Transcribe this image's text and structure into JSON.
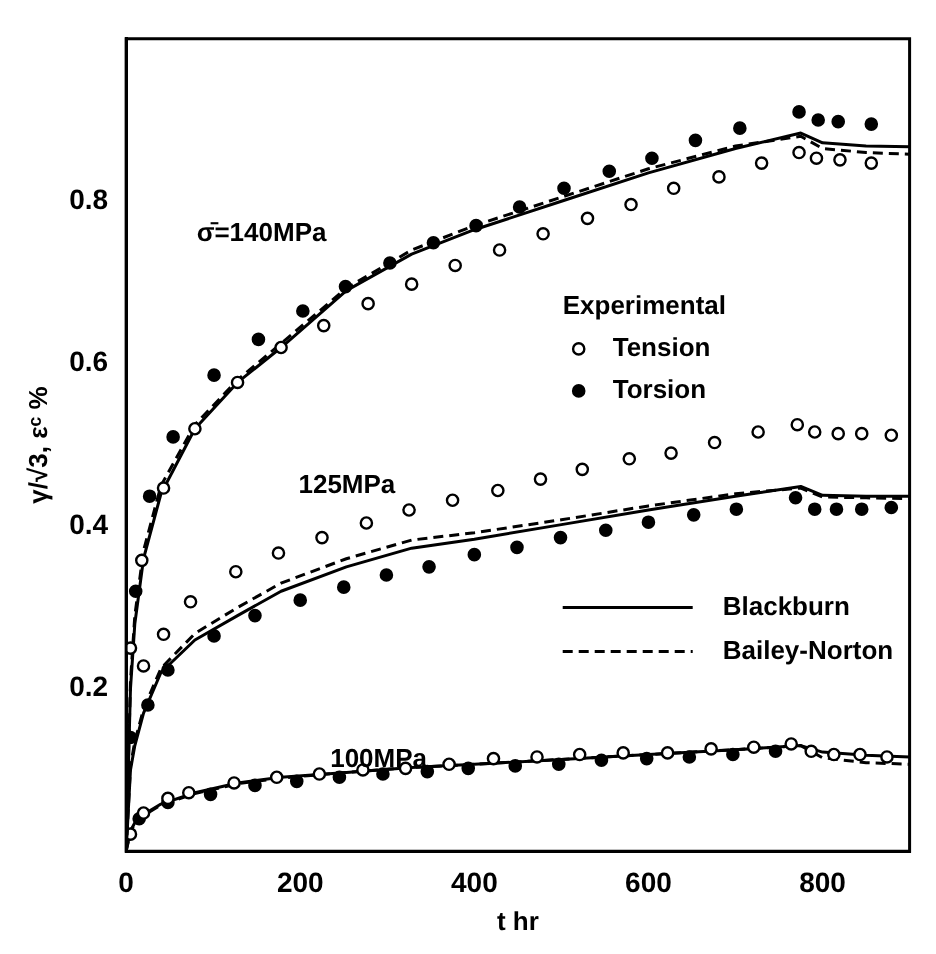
{
  "chart_data": {
    "type": "line",
    "xlabel": "t hr",
    "ylabel": "γ/√3, εᶜ %",
    "xlim": [
      0,
      900
    ],
    "xticks": [
      0,
      200,
      400,
      600,
      800
    ],
    "ylim": [
      0,
      1.0
    ],
    "yticks": [
      0.2,
      0.4,
      0.6,
      0.8
    ],
    "grid": false,
    "legend": "right",
    "legend_title": "Experimental",
    "annotations": [
      "σ̄=140MPa",
      "125MPa",
      {
        "text": "100MPa",
        "x": 290,
        "y": 0.112
      }
    ],
    "series": [
      {
        "name": "Tension",
        "type": "scatter",
        "marker": "circle",
        "color": "#000000",
        "x": [
          5,
          18,
          43,
          79,
          128,
          178,
          227,
          278,
          328,
          378,
          429,
          479,
          530,
          580,
          629,
          681,
          730,
          773,
          793,
          820,
          856
        ],
        "values": [
          0.25,
          0.358,
          0.447,
          0.52,
          0.577,
          0.62,
          0.647,
          0.674,
          0.698,
          0.721,
          0.74,
          0.76,
          0.779,
          0.796,
          0.816,
          0.83,
          0.847,
          0.86,
          0.853,
          0.851,
          0.847
        ]
      },
      {
        "name": "Torsion",
        "type": "scatter",
        "marker": "circle",
        "color": "#000000",
        "x": [
          11,
          27,
          54,
          101,
          152,
          203,
          252,
          303,
          353,
          402,
          452,
          503,
          555,
          604,
          654,
          705,
          773,
          795,
          818,
          856
        ],
        "values": [
          0.32,
          0.437,
          0.51,
          0.586,
          0.63,
          0.665,
          0.695,
          0.724,
          0.749,
          0.77,
          0.793,
          0.816,
          0.837,
          0.853,
          0.875,
          0.89,
          0.91,
          0.9,
          0.898,
          0.895
        ]
      },
      {
        "name": "Blackburn",
        "line_style": "solid",
        "color": "#000000",
        "x": [
          0,
          5,
          10,
          20,
          40,
          79,
          128,
          178,
          253,
          328,
          400,
          500,
          600,
          700,
          775,
          800,
          850,
          900
        ],
        "values": [
          0,
          0.2,
          0.28,
          0.36,
          0.44,
          0.52,
          0.577,
          0.62,
          0.69,
          0.735,
          0.765,
          0.8,
          0.835,
          0.865,
          0.884,
          0.872,
          0.868,
          0.867
        ]
      },
      {
        "name": "Bailey-Norton",
        "line_style": "dashed",
        "color": "#000000",
        "x": [
          0,
          5,
          10,
          20,
          40,
          79,
          128,
          178,
          253,
          328,
          400,
          500,
          600,
          700,
          775,
          800,
          850,
          900
        ],
        "values": [
          0,
          0.21,
          0.29,
          0.37,
          0.45,
          0.525,
          0.58,
          0.625,
          0.693,
          0.74,
          0.77,
          0.805,
          0.84,
          0.868,
          0.88,
          0.865,
          0.86,
          0.858
        ]
      },
      {
        "type": "scatter",
        "marker": "circle",
        "color": "#000000",
        "x": [
          20,
          43,
          74,
          126,
          175,
          225,
          276,
          325,
          375,
          427,
          476,
          524,
          578,
          626,
          676,
          726,
          771,
          791,
          818,
          845,
          879
        ],
        "values": [
          0.228,
          0.267,
          0.307,
          0.344,
          0.367,
          0.386,
          0.404,
          0.42,
          0.432,
          0.444,
          0.458,
          0.47,
          0.483,
          0.49,
          0.503,
          0.516,
          0.525,
          0.516,
          0.514,
          0.514,
          0.512
        ]
      },
      {
        "type": "scatter",
        "marker": "circle",
        "color": "#000000",
        "x": [
          5,
          25,
          48,
          101,
          148,
          200,
          250,
          299,
          348,
          400,
          449,
          499,
          551,
          600,
          652,
          701,
          769,
          791,
          816,
          845,
          879
        ],
        "values": [
          0.14,
          0.18,
          0.223,
          0.265,
          0.29,
          0.309,
          0.325,
          0.34,
          0.35,
          0.365,
          0.374,
          0.386,
          0.395,
          0.405,
          0.414,
          0.421,
          0.435,
          0.421,
          0.421,
          0.421,
          0.423
        ]
      },
      {
        "line_style": "solid",
        "color": "#000000",
        "x": [
          0,
          5,
          10,
          20,
          40,
          79,
          128,
          178,
          253,
          328,
          400,
          500,
          600,
          700,
          775,
          800,
          850,
          900
        ],
        "values": [
          0,
          0.1,
          0.13,
          0.17,
          0.22,
          0.26,
          0.29,
          0.32,
          0.35,
          0.373,
          0.384,
          0.402,
          0.42,
          0.437,
          0.449,
          0.438,
          0.437,
          0.437
        ]
      },
      {
        "line_style": "dashed",
        "color": "#000000",
        "x": [
          0,
          5,
          10,
          20,
          40,
          79,
          128,
          178,
          253,
          328,
          400,
          500,
          600,
          700,
          775,
          800,
          850,
          900
        ],
        "values": [
          0,
          0.105,
          0.135,
          0.175,
          0.225,
          0.268,
          0.3,
          0.33,
          0.36,
          0.383,
          0.392,
          0.408,
          0.425,
          0.44,
          0.447,
          0.436,
          0.435,
          0.434
        ]
      },
      {
        "type": "scatter",
        "marker": "circle",
        "color": "#000000",
        "x": [
          5,
          20,
          48,
          72,
          124,
          173,
          222,
          272,
          321,
          371,
          422,
          472,
          521,
          571,
          622,
          672,
          721,
          764,
          787,
          813,
          843,
          874
        ],
        "values": [
          0.021,
          0.047,
          0.065,
          0.072,
          0.084,
          0.091,
          0.095,
          0.1,
          0.102,
          0.107,
          0.114,
          0.116,
          0.119,
          0.121,
          0.121,
          0.126,
          0.128,
          0.132,
          0.123,
          0.119,
          0.119,
          0.116
        ]
      },
      {
        "type": "scatter",
        "marker": "circle",
        "color": "#000000",
        "x": [
          15,
          48,
          97,
          148,
          196,
          245,
          295,
          346,
          393,
          447,
          497,
          546,
          598,
          647,
          697,
          746
        ],
        "values": [
          0.04,
          0.06,
          0.07,
          0.081,
          0.086,
          0.091,
          0.095,
          0.098,
          0.102,
          0.105,
          0.107,
          0.112,
          0.114,
          0.116,
          0.119,
          0.123
        ]
      },
      {
        "line_style": "solid",
        "color": "#000000",
        "x": [
          0,
          5,
          10,
          20,
          40,
          79,
          128,
          178,
          253,
          328,
          400,
          500,
          600,
          700,
          775,
          800,
          850,
          900
        ],
        "values": [
          0,
          0.025,
          0.035,
          0.045,
          0.058,
          0.072,
          0.084,
          0.091,
          0.097,
          0.103,
          0.107,
          0.113,
          0.119,
          0.125,
          0.13,
          0.122,
          0.118,
          0.116
        ]
      },
      {
        "line_style": "dashed",
        "color": "#000000",
        "x": [
          0,
          5,
          10,
          20,
          40,
          79,
          128,
          178,
          253,
          328,
          400,
          500,
          600,
          700,
          775,
          800,
          850,
          900
        ],
        "values": [
          0,
          0.024,
          0.034,
          0.044,
          0.057,
          0.071,
          0.083,
          0.09,
          0.097,
          0.103,
          0.107,
          0.113,
          0.119,
          0.125,
          0.13,
          0.115,
          0.109,
          0.107
        ]
      }
    ]
  }
}
